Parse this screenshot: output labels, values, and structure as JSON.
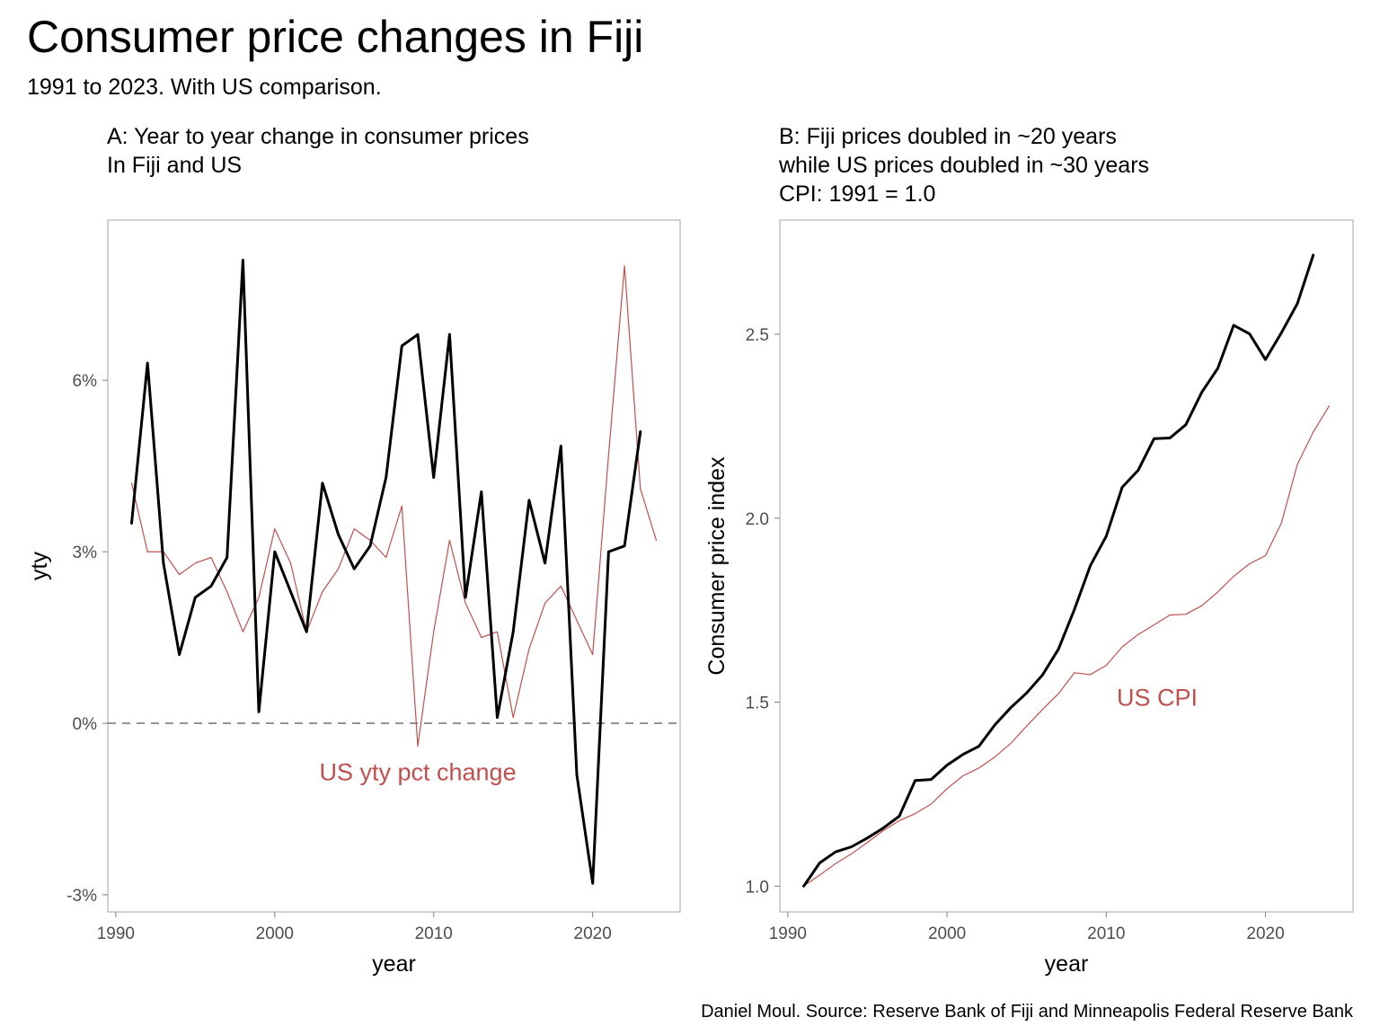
{
  "title": "Consumer price changes in Fiji",
  "subtitle": "1991 to 2023. With US comparison.",
  "caption": "Daniel Moul. Source: Reserve Bank of Fiji and Minneapolis Federal Reserve Bank",
  "colors": {
    "fiji": "#000000",
    "us": "#C0504D",
    "zero_line": "#555555",
    "panel_border": "#b3b3b3",
    "tick_text": "#4d4d4d"
  },
  "chart_data": [
    {
      "type": "line",
      "title_lines": [
        "A: Year to year change in consumer prices",
        "In Fiji and US"
      ],
      "xlabel": "year",
      "ylabel": "yty",
      "xlim": [
        1989.5,
        2025.5
      ],
      "ylim": [
        -3.3,
        8.8
      ],
      "x_ticks": [
        1990,
        2000,
        2010,
        2020
      ],
      "x_tick_labels": [
        "1990",
        "2000",
        "2010",
        "2020"
      ],
      "y_ticks": [
        -3,
        0,
        3,
        6
      ],
      "y_tick_labels": [
        "-3%",
        "0%",
        "3%",
        "6%"
      ],
      "grid": false,
      "reference_line": {
        "y": 0,
        "style": "dashed"
      },
      "annotation": {
        "text": "US yty pct change",
        "x": 2009,
        "y": -1.0,
        "color_key": "us"
      },
      "series": [
        {
          "key": "fiji",
          "x": [
            1991,
            1992,
            1993,
            1994,
            1995,
            1996,
            1997,
            1998,
            1999,
            2000,
            2001,
            2002,
            2003,
            2004,
            2005,
            2006,
            2007,
            2008,
            2009,
            2010,
            2011,
            2012,
            2013,
            2014,
            2015,
            2016,
            2017,
            2018,
            2019,
            2020,
            2021,
            2022,
            2023
          ],
          "values": [
            3.5,
            6.3,
            2.8,
            1.2,
            2.2,
            2.4,
            2.9,
            8.1,
            0.2,
            3.0,
            2.3,
            1.6,
            4.2,
            3.3,
            2.7,
            3.1,
            4.3,
            6.6,
            6.8,
            4.3,
            6.8,
            2.2,
            4.05,
            0.1,
            1.6,
            3.9,
            2.8,
            4.85,
            -0.9,
            -2.8,
            3.0,
            3.1,
            5.1
          ],
          "stroke_width": 3
        },
        {
          "key": "us",
          "x": [
            1991,
            1992,
            1993,
            1994,
            1995,
            1996,
            1997,
            1998,
            1999,
            2000,
            2001,
            2002,
            2003,
            2004,
            2005,
            2006,
            2007,
            2008,
            2009,
            2010,
            2011,
            2012,
            2013,
            2014,
            2015,
            2016,
            2017,
            2018,
            2019,
            2020,
            2021,
            2022,
            2023,
            2024
          ],
          "values": [
            4.2,
            3.0,
            3.0,
            2.6,
            2.8,
            2.9,
            2.3,
            1.6,
            2.2,
            3.4,
            2.8,
            1.6,
            2.3,
            2.7,
            3.4,
            3.2,
            2.9,
            3.8,
            -0.4,
            1.6,
            3.2,
            2.1,
            1.5,
            1.6,
            0.1,
            1.3,
            2.1,
            2.4,
            1.8,
            1.2,
            4.7,
            8.0,
            4.1,
            3.2
          ],
          "stroke_width": 1.2
        }
      ]
    },
    {
      "type": "line",
      "title_lines": [
        "B: Fiji prices doubled in ~20 years",
        "while US prices doubled in ~30 years",
        "CPI: 1991 = 1.0"
      ],
      "xlabel": "year",
      "ylabel": "Consumer price index",
      "xlim": [
        1989.5,
        2025.5
      ],
      "ylim": [
        0.93,
        2.81
      ],
      "x_ticks": [
        1990,
        2000,
        2010,
        2020
      ],
      "x_tick_labels": [
        "1990",
        "2000",
        "2010",
        "2020"
      ],
      "y_ticks": [
        1.0,
        1.5,
        2.0,
        2.5
      ],
      "y_tick_labels": [
        "1.0",
        "1.5",
        "2.0",
        "2.5"
      ],
      "grid": false,
      "annotation": {
        "text": "US CPI",
        "x": 2013.2,
        "y": 1.49,
        "color_key": "us"
      },
      "series": [
        {
          "key": "fiji",
          "x": [
            1991,
            1992,
            1993,
            1994,
            1995,
            1996,
            1997,
            1998,
            1999,
            2000,
            2001,
            2002,
            2003,
            2004,
            2005,
            2006,
            2007,
            2008,
            2009,
            2010,
            2011,
            2012,
            2013,
            2014,
            2015,
            2016,
            2017,
            2018,
            2019,
            2020,
            2021,
            2022,
            2023
          ],
          "values": [
            1.0,
            1.063,
            1.093,
            1.107,
            1.131,
            1.158,
            1.19,
            1.287,
            1.29,
            1.329,
            1.358,
            1.38,
            1.438,
            1.485,
            1.525,
            1.574,
            1.644,
            1.752,
            1.871,
            1.951,
            2.084,
            2.13,
            2.216,
            2.218,
            2.254,
            2.342,
            2.407,
            2.524,
            2.501,
            2.431,
            2.504,
            2.583,
            2.715
          ],
          "stroke_width": 3
        },
        {
          "key": "us",
          "x": [
            1991,
            1992,
            1993,
            1994,
            1995,
            1996,
            1997,
            1998,
            1999,
            2000,
            2001,
            2002,
            2003,
            2004,
            2005,
            2006,
            2007,
            2008,
            2009,
            2010,
            2011,
            2012,
            2013,
            2014,
            2015,
            2016,
            2017,
            2018,
            2019,
            2020,
            2021,
            2022,
            2023,
            2024
          ],
          "values": [
            1.0,
            1.03,
            1.061,
            1.088,
            1.119,
            1.151,
            1.178,
            1.197,
            1.223,
            1.265,
            1.3,
            1.321,
            1.351,
            1.388,
            1.435,
            1.48,
            1.523,
            1.58,
            1.575,
            1.6,
            1.65,
            1.684,
            1.71,
            1.737,
            1.739,
            1.762,
            1.799,
            1.842,
            1.876,
            1.898,
            1.987,
            2.146,
            2.234,
            2.305
          ],
          "stroke_width": 1.2
        }
      ]
    }
  ]
}
